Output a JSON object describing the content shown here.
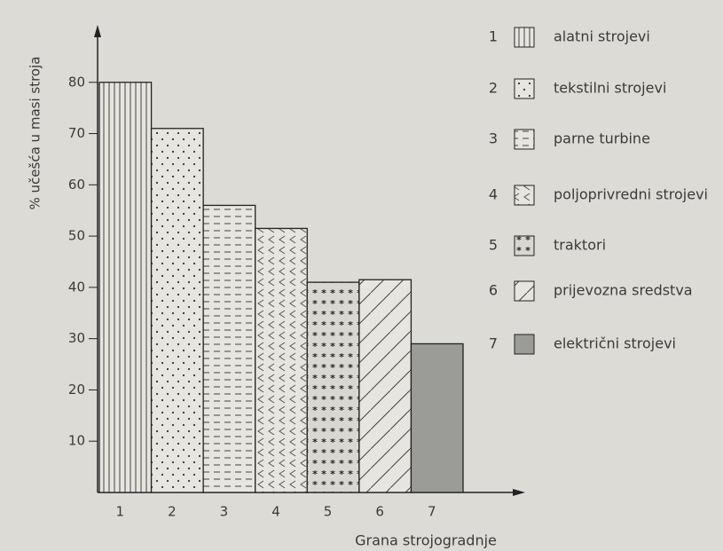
{
  "chart_data": {
    "type": "bar",
    "y_label": "% učešća u masi stroja",
    "x_label": "Grana strojogradnje",
    "categories": [
      "1",
      "2",
      "3",
      "4",
      "5",
      "6",
      "7"
    ],
    "values": [
      80,
      71,
      56,
      51.5,
      41,
      41.5,
      29
    ],
    "labels": [
      "alatni strojevi",
      "tekstilni strojevi",
      "parne turbine",
      "poljoprivredni strojevi",
      "traktori",
      "prijevozna sredstva",
      "električni strojevi"
    ],
    "patterns": [
      "vertical",
      "dots",
      "dashes",
      "chevrons",
      "stars",
      "diagonal",
      "solid"
    ],
    "ylim": [
      0,
      90
    ],
    "yticks": [
      10,
      20,
      30,
      40,
      50,
      60,
      70,
      80
    ]
  }
}
